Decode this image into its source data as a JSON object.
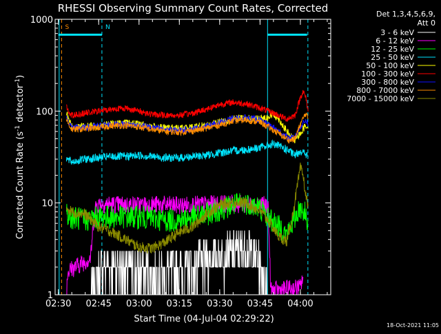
{
  "chart_data": {
    "type": "line",
    "title": "RHESSI Observing Summary Count Rates, Corrected",
    "xlabel": "Start Time (04-Jul-04 02:29:22)",
    "ylabel": "Corrected Count Rate (s",
    "ylabel_sup1": "-1",
    "ylabel_mid": " detector",
    "ylabel_sup2": "-1",
    "ylabel_end": ")",
    "y_log": true,
    "ylim": [
      1,
      1000
    ],
    "x_unit": "minutes after 02:30",
    "xlim": [
      0,
      100
    ],
    "x_ticks": [
      {
        "label": "02:30",
        "x": 0
      },
      {
        "label": "02:45",
        "x": 15
      },
      {
        "label": "03:00",
        "x": 30
      },
      {
        "label": "03:15",
        "x": 45
      },
      {
        "label": "03:30",
        "x": 60
      },
      {
        "label": "03:45",
        "x": 75
      },
      {
        "label": "04:00",
        "x": 90
      }
    ],
    "y_ticks": [
      {
        "label": "1",
        "y": 1
      },
      {
        "label": "10",
        "y": 10
      },
      {
        "label": "100",
        "y": 100
      },
      {
        "label": "1000",
        "y": 1000
      }
    ],
    "legend_header": [
      "Det 1,3,4,5,6,9,",
      "Att 0"
    ],
    "legend_position": "outside-right",
    "annotations": [
      {
        "text": "S",
        "x": 2.5,
        "color": "#ff8c00"
      },
      {
        "text": "N",
        "x": 17.5,
        "color": "#00e5ff"
      }
    ],
    "markers": [
      {
        "type": "dashed",
        "x": 1.2,
        "color": "#ff8c00"
      },
      {
        "type": "solid",
        "x": 0.3,
        "color": "#00e5ff"
      },
      {
        "type": "dashed",
        "x": 16.2,
        "color": "#00e5ff"
      },
      {
        "type": "solid",
        "x": 77.8,
        "color": "#00e5ff"
      },
      {
        "type": "dashed",
        "x": 92.8,
        "color": "#00e5ff"
      }
    ],
    "saa_bars": [
      {
        "x0": 0,
        "x1": 16.2,
        "y": 680,
        "color": "#00e5ff"
      },
      {
        "x0": 77.8,
        "x1": 92.5,
        "y": 680,
        "color": "#00e5ff"
      }
    ],
    "series": [
      {
        "name": "3 - 6 keV",
        "color": "#ffffff",
        "x": [
          12,
          14,
          16,
          18,
          22,
          26,
          30,
          34,
          38,
          42,
          46,
          50,
          54,
          58,
          62,
          66,
          70,
          72,
          74,
          76,
          78
        ],
        "values": [
          1.1,
          1.5,
          1.8,
          2.2,
          2.0,
          1.8,
          1.8,
          1.7,
          1.6,
          1.7,
          1.8,
          2.0,
          2.2,
          2.4,
          2.6,
          2.9,
          3.0,
          2.8,
          2.3,
          1.6,
          1.2
        ]
      },
      {
        "name": "6 - 12 keV",
        "color": "#ff00ff",
        "x": [
          3,
          3.5,
          12,
          13,
          14,
          16,
          20,
          25,
          30,
          35,
          40,
          45,
          50,
          55,
          60,
          65,
          70,
          75,
          78,
          79,
          90,
          91
        ],
        "values": [
          1.0,
          1.8,
          2.5,
          6.0,
          9.5,
          9.8,
          9.6,
          9.5,
          9.5,
          9.6,
          9.5,
          9.4,
          9.5,
          9.6,
          9.7,
          9.8,
          9.6,
          9.5,
          9.4,
          1.1,
          1.2,
          1.6
        ]
      },
      {
        "name": "12 - 25 keV",
        "color": "#00ff00",
        "x": [
          3,
          5,
          10,
          15,
          20,
          25,
          30,
          35,
          40,
          45,
          50,
          55,
          60,
          65,
          70,
          75,
          78,
          82,
          85,
          88,
          90,
          92,
          93
        ],
        "values": [
          7.5,
          7.0,
          6.5,
          7.0,
          7.0,
          7.0,
          7.0,
          6.8,
          6.5,
          6.5,
          7.0,
          7.5,
          8.5,
          9.5,
          10.0,
          8.8,
          7.0,
          5.5,
          4.5,
          7.0,
          9.0,
          7.5,
          6.0
        ]
      },
      {
        "name": "25 - 50 keV",
        "color": "#00e5ff",
        "x": [
          3,
          5,
          10,
          15,
          20,
          25,
          30,
          35,
          40,
          45,
          50,
          55,
          60,
          65,
          70,
          75,
          80,
          85,
          88,
          90,
          92,
          93
        ],
        "values": [
          30,
          28,
          30,
          31,
          32,
          32,
          33,
          32,
          31,
          31,
          32,
          33,
          35,
          37,
          38,
          40,
          44,
          38,
          33,
          37,
          34,
          31
        ]
      },
      {
        "name": "50 - 100 keV",
        "color": "#ffff00",
        "x": [
          3,
          5,
          10,
          15,
          20,
          25,
          30,
          35,
          40,
          45,
          50,
          55,
          60,
          65,
          70,
          75,
          78,
          80,
          82,
          84,
          86,
          88,
          90,
          92,
          93
        ],
        "values": [
          95,
          68,
          68,
          70,
          73,
          74,
          72,
          68,
          65,
          65,
          67,
          70,
          76,
          82,
          84,
          82,
          86,
          92,
          82,
          66,
          55,
          48,
          58,
          70,
          66
        ]
      },
      {
        "name": "100 - 300 keV",
        "color": "#ff0000",
        "x": [
          3,
          3.5,
          5,
          10,
          15,
          20,
          25,
          30,
          35,
          40,
          45,
          50,
          55,
          60,
          65,
          70,
          75,
          80,
          85,
          88,
          90,
          91,
          92,
          93
        ],
        "values": [
          125,
          100,
          90,
          95,
          100,
          105,
          108,
          100,
          92,
          90,
          90,
          95,
          105,
          118,
          125,
          120,
          108,
          95,
          82,
          90,
          140,
          165,
          140,
          98
        ]
      },
      {
        "name": "300 - 800 keV",
        "color": "#1010ff",
        "x": [
          3,
          5,
          10,
          15,
          20,
          25,
          30,
          35,
          40,
          45,
          50,
          55,
          60,
          65,
          70,
          75,
          80,
          84,
          86,
          88,
          90,
          92,
          93
        ],
        "values": [
          85,
          66,
          66,
          69,
          72,
          72,
          70,
          66,
          63,
          62,
          64,
          68,
          75,
          82,
          85,
          80,
          66,
          55,
          50,
          52,
          68,
          80,
          72
        ]
      },
      {
        "name": "800 - 7000 keV",
        "color": "#ff8c00",
        "x": [
          3,
          5,
          10,
          15,
          20,
          25,
          30,
          35,
          40,
          45,
          50,
          55,
          60,
          65,
          70,
          75,
          80,
          84,
          86,
          88,
          90,
          92,
          93
        ],
        "values": [
          80,
          63,
          64,
          66,
          69,
          70,
          67,
          63,
          60,
          59,
          61,
          65,
          71,
          78,
          80,
          76,
          62,
          52,
          48,
          50,
          72,
          95,
          80
        ]
      },
      {
        "name": "7000 - 15000 keV",
        "color": "#8b8b00",
        "x": [
          3,
          5,
          10,
          15,
          20,
          25,
          30,
          35,
          40,
          45,
          50,
          55,
          60,
          65,
          70,
          75,
          78,
          82,
          85,
          87,
          89,
          90,
          91,
          92,
          93
        ],
        "values": [
          9.0,
          8.0,
          7.5,
          5.5,
          4.8,
          4.0,
          3.3,
          3.2,
          3.8,
          4.8,
          5.5,
          7.5,
          9.5,
          10.2,
          10.0,
          8.2,
          6.5,
          4.3,
          3.8,
          7.0,
          16.0,
          24.0,
          20.0,
          12.0,
          9.0
        ]
      }
    ]
  },
  "footer": {
    "stamp": "18-Oct-2021 11:05"
  }
}
